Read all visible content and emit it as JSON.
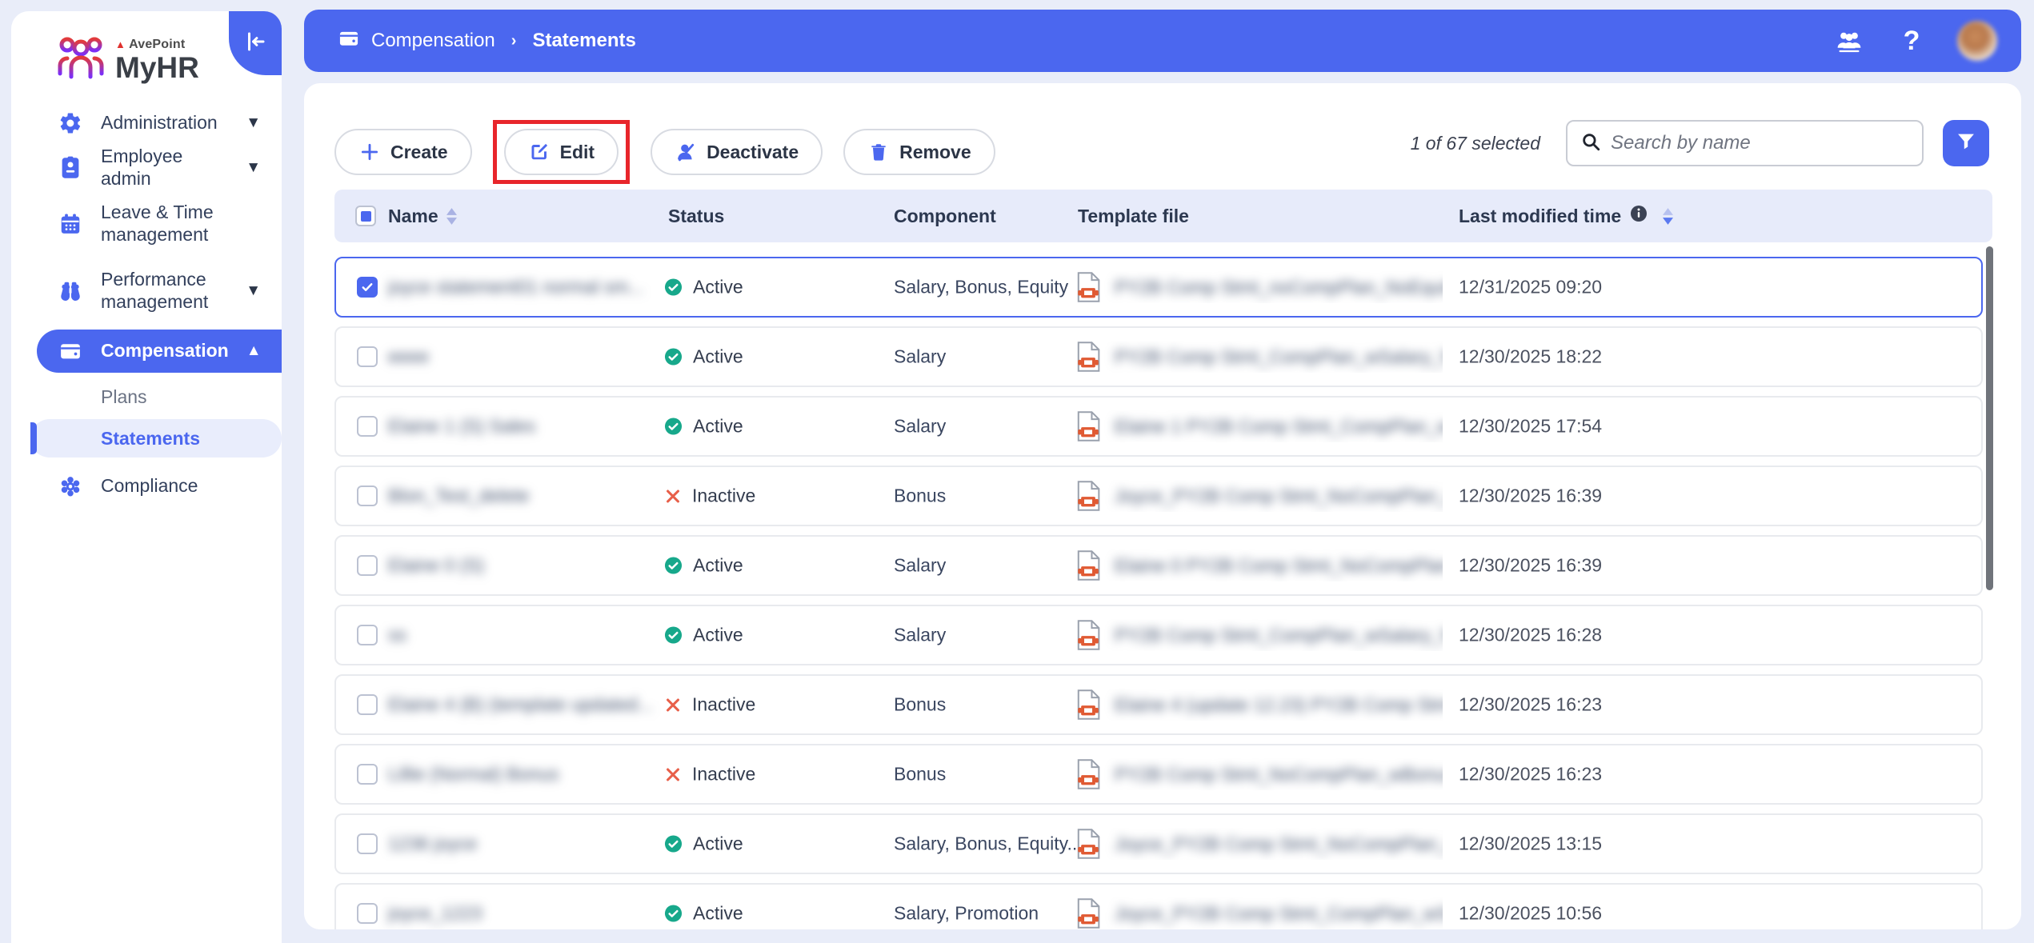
{
  "brand": {
    "product": "MyHR",
    "company": "AvePoint"
  },
  "colors": {
    "accent": "#4b67ef",
    "status_active": "#17a88b",
    "status_inactive": "#e8604a",
    "annotation_highlight": "#e8252b",
    "file_icon": "#e05a33",
    "page_background": "#e9edf9"
  },
  "sidebar": {
    "items": [
      {
        "label": "Administration",
        "icon": "gear-icon",
        "expandable": true
      },
      {
        "label": "Employee admin",
        "icon": "id-badge-icon",
        "expandable": true
      },
      {
        "label": "Leave & Time management",
        "icon": "calendar-icon",
        "expandable": false
      },
      {
        "label": "Performance management",
        "icon": "binoculars-icon",
        "expandable": true
      },
      {
        "label": "Compensation",
        "icon": "wallet-icon",
        "expandable": true,
        "expanded": true,
        "active": true
      },
      {
        "label": "Plans",
        "type": "sub"
      },
      {
        "label": "Statements",
        "type": "sub",
        "selected": true
      },
      {
        "label": "Compliance",
        "icon": "compliance-icon",
        "expandable": false
      }
    ]
  },
  "topbar": {
    "breadcrumb": {
      "parent": "Compensation",
      "current": "Statements"
    }
  },
  "toolbar": {
    "buttons": [
      {
        "label": "Create",
        "icon": "plus-icon"
      },
      {
        "label": "Edit",
        "icon": "edit-icon",
        "annotated": true
      },
      {
        "label": "Deactivate",
        "icon": "deactivate-user-icon"
      },
      {
        "label": "Remove",
        "icon": "trash-icon"
      }
    ],
    "selection_status": "1 of 67 selected",
    "search_placeholder": "Search by name"
  },
  "table": {
    "columns": [
      "Name",
      "Status",
      "Component",
      "Template file",
      "Last modified time"
    ],
    "sort": {
      "column": "Last modified time",
      "direction": "desc"
    },
    "rows": [
      {
        "name": "joyce statement01 normal sm...",
        "name_redacted": true,
        "status": "Active",
        "component": "Salary, Bonus, Equity",
        "template": "PY2B Comp Stmt_noCompPlan_NoEquity...",
        "template_redacted": true,
        "modified": "12/31/2025 09:20",
        "selected": true
      },
      {
        "name": "eeee",
        "name_redacted": true,
        "status": "Active",
        "component": "Salary",
        "template": "PY2B Comp Stmt_CompPlan_wSalary_No...",
        "template_redacted": true,
        "modified": "12/30/2025 18:22",
        "selected": false
      },
      {
        "name": "Elaine 1 (S) Sales",
        "name_redacted": true,
        "status": "Active",
        "component": "Salary",
        "template": "Elaine 1 PY2B Comp Stmt_CompPlan_wS...",
        "template_redacted": true,
        "modified": "12/30/2025 17:54",
        "selected": false
      },
      {
        "name": "Blon_Test_delete",
        "name_redacted": true,
        "status": "Inactive",
        "component": "Bonus",
        "template": "Joyce_PY2B Comp Stmt_NoCompPlan_wB...",
        "template_redacted": true,
        "modified": "12/30/2025 16:39",
        "selected": false
      },
      {
        "name": "Elaine 0 (S)",
        "name_redacted": true,
        "status": "Active",
        "component": "Salary",
        "template": "Elaine 0 PY2B Comp Stmt_NoCompPlan_...",
        "template_redacted": true,
        "modified": "12/30/2025 16:39",
        "selected": false
      },
      {
        "name": "ss",
        "name_redacted": true,
        "status": "Active",
        "component": "Salary",
        "template": "PY2B Comp Stmt_CompPlan_wSalary_No...",
        "template_redacted": true,
        "modified": "12/30/2025 16:28",
        "selected": false
      },
      {
        "name": "Elaine 4 (B) (template updated...",
        "name_redacted": true,
        "status": "Inactive",
        "component": "Bonus",
        "template": "Elaine 4 (update 12.23) PY2B Comp Stmt_...",
        "template_redacted": true,
        "modified": "12/30/2025 16:23",
        "selected": false
      },
      {
        "name": "Lillie (Normal) Bonus",
        "name_redacted": true,
        "status": "Inactive",
        "component": "Bonus",
        "template": "PY2B Comp Stmt_NoCompPlan_wBonus_...",
        "template_redacted": true,
        "modified": "12/30/2025 16:23",
        "selected": false
      },
      {
        "name": "1236 joyce",
        "name_redacted": true,
        "status": "Active",
        "component": "Salary, Bonus, Equity...",
        "template": "Joyce_PY2B Comp Stmt_NoCompPlan_wS...",
        "template_redacted": true,
        "modified": "12/30/2025 13:15",
        "selected": false
      },
      {
        "name": "joyce_1223",
        "name_redacted": true,
        "status": "Active",
        "component": "Salary, Promotion",
        "template": "Joyce_PY2B Comp Stmt_CompPlan_wSala...",
        "template_redacted": true,
        "modified": "12/30/2025 10:56",
        "selected": false
      }
    ]
  }
}
